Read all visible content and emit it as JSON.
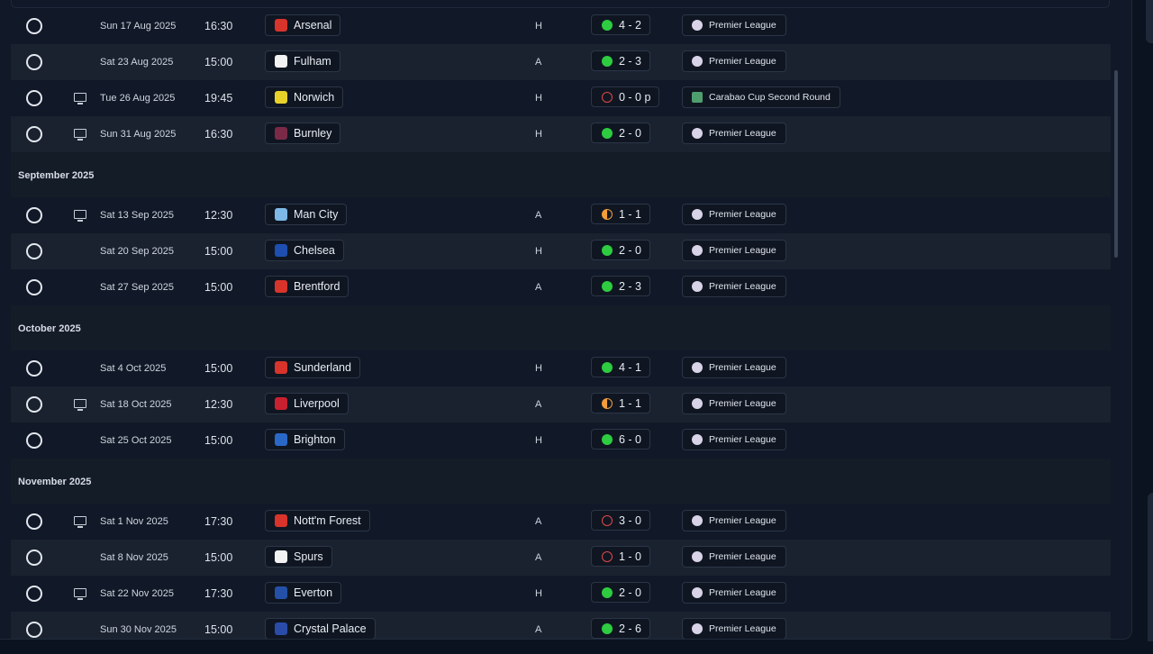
{
  "fixtures": [
    {
      "kind": "match",
      "alt": false,
      "tv": false,
      "date": "Sun 17 Aug 2025",
      "time": "16:30",
      "team": "Arsenal",
      "crest_color": "#d9342b",
      "venue": "H",
      "result_type": "win",
      "score": "4 - 2",
      "competition": "Premier League",
      "comp_type": "league"
    },
    {
      "kind": "match",
      "alt": true,
      "tv": false,
      "date": "Sat 23 Aug 2025",
      "time": "15:00",
      "team": "Fulham",
      "crest_color": "#f2f2f2",
      "venue": "A",
      "result_type": "win",
      "score": "2 - 3",
      "competition": "Premier League",
      "comp_type": "league"
    },
    {
      "kind": "match",
      "alt": false,
      "tv": true,
      "date": "Tue 26 Aug 2025",
      "time": "19:45",
      "team": "Norwich",
      "crest_color": "#e8d22a",
      "venue": "H",
      "result_type": "loss",
      "score": "0 - 0 p",
      "competition": "Carabao Cup Second Round",
      "comp_type": "cup"
    },
    {
      "kind": "match",
      "alt": true,
      "tv": true,
      "date": "Sun 31 Aug 2025",
      "time": "16:30",
      "team": "Burnley",
      "crest_color": "#7a2a47",
      "venue": "H",
      "result_type": "win",
      "score": "2 - 0",
      "competition": "Premier League",
      "comp_type": "league"
    },
    {
      "kind": "month",
      "label": "September 2025"
    },
    {
      "kind": "match",
      "alt": false,
      "tv": true,
      "date": "Sat 13 Sep 2025",
      "time": "12:30",
      "team": "Man City",
      "crest_color": "#7db8e6",
      "venue": "A",
      "result_type": "draw",
      "score": "1 - 1",
      "competition": "Premier League",
      "comp_type": "league"
    },
    {
      "kind": "match",
      "alt": true,
      "tv": false,
      "date": "Sat 20 Sep 2025",
      "time": "15:00",
      "team": "Chelsea",
      "crest_color": "#1e4fb0",
      "venue": "H",
      "result_type": "win",
      "score": "2 - 0",
      "competition": "Premier League",
      "comp_type": "league"
    },
    {
      "kind": "match",
      "alt": false,
      "tv": false,
      "date": "Sat 27 Sep 2025",
      "time": "15:00",
      "team": "Brentford",
      "crest_color": "#d9342b",
      "venue": "A",
      "result_type": "win",
      "score": "2 - 3",
      "competition": "Premier League",
      "comp_type": "league"
    },
    {
      "kind": "month",
      "label": "October 2025"
    },
    {
      "kind": "match",
      "alt": false,
      "tv": false,
      "date": "Sat 4 Oct 2025",
      "time": "15:00",
      "team": "Sunderland",
      "crest_color": "#d9342b",
      "venue": "H",
      "result_type": "win",
      "score": "4 - 1",
      "competition": "Premier League",
      "comp_type": "league"
    },
    {
      "kind": "match",
      "alt": true,
      "tv": true,
      "date": "Sat 18 Oct 2025",
      "time": "12:30",
      "team": "Liverpool",
      "crest_color": "#c8202f",
      "venue": "A",
      "result_type": "draw",
      "score": "1 - 1",
      "competition": "Premier League",
      "comp_type": "league"
    },
    {
      "kind": "match",
      "alt": false,
      "tv": false,
      "date": "Sat 25 Oct 2025",
      "time": "15:00",
      "team": "Brighton",
      "crest_color": "#2a68c8",
      "venue": "H",
      "result_type": "win",
      "score": "6 - 0",
      "competition": "Premier League",
      "comp_type": "league"
    },
    {
      "kind": "month",
      "label": "November 2025"
    },
    {
      "kind": "match",
      "alt": false,
      "tv": true,
      "date": "Sat 1 Nov 2025",
      "time": "17:30",
      "team": "Nott'm Forest",
      "crest_color": "#d9342b",
      "venue": "A",
      "result_type": "loss",
      "score": "3 - 0",
      "competition": "Premier League",
      "comp_type": "league"
    },
    {
      "kind": "match",
      "alt": true,
      "tv": false,
      "date": "Sat 8 Nov 2025",
      "time": "15:00",
      "team": "Spurs",
      "crest_color": "#f2f2f2",
      "venue": "A",
      "result_type": "loss",
      "score": "1 - 0",
      "competition": "Premier League",
      "comp_type": "league"
    },
    {
      "kind": "match",
      "alt": false,
      "tv": true,
      "date": "Sat 22 Nov 2025",
      "time": "17:30",
      "team": "Everton",
      "crest_color": "#2450a8",
      "venue": "H",
      "result_type": "win",
      "score": "2 - 0",
      "competition": "Premier League",
      "comp_type": "league"
    },
    {
      "kind": "match",
      "alt": true,
      "tv": false,
      "date": "Sun 30 Nov 2025",
      "time": "15:00",
      "team": "Crystal Palace",
      "crest_color": "#2a4ca8",
      "venue": "A",
      "result_type": "win",
      "score": "2 - 6",
      "competition": "Premier League",
      "comp_type": "league"
    }
  ]
}
